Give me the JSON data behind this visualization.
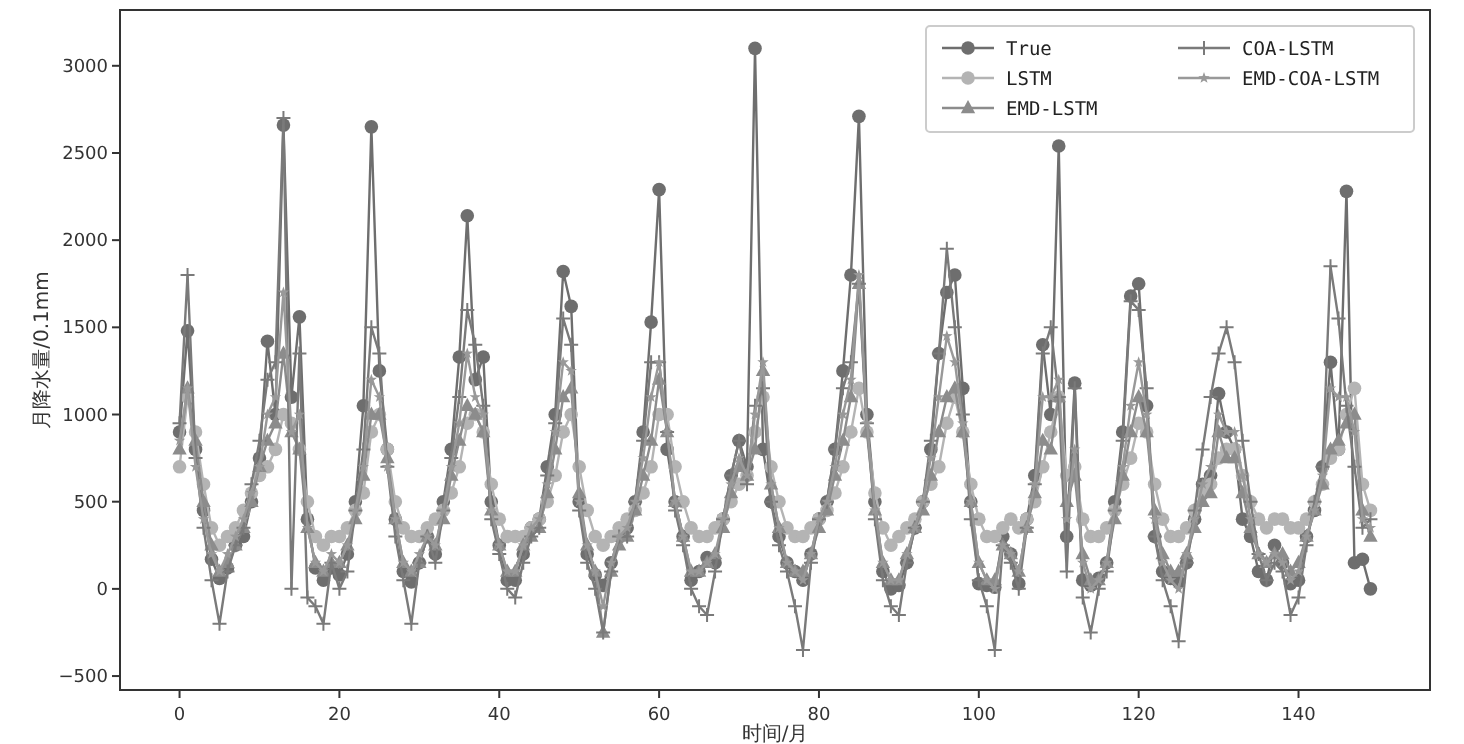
{
  "chart_data": {
    "type": "line",
    "xlabel": "时间/月",
    "ylabel": "月降水量/0.1mm",
    "x": [
      0,
      1,
      2,
      3,
      4,
      5,
      6,
      7,
      8,
      9,
      10,
      11,
      12,
      13,
      14,
      15,
      16,
      17,
      18,
      19,
      20,
      21,
      22,
      23,
      24,
      25,
      26,
      27,
      28,
      29,
      30,
      31,
      32,
      33,
      34,
      35,
      36,
      37,
      38,
      39,
      40,
      41,
      42,
      43,
      44,
      45,
      46,
      47,
      48,
      49,
      50,
      51,
      52,
      53,
      54,
      55,
      56,
      57,
      58,
      59,
      60,
      61,
      62,
      63,
      64,
      65,
      66,
      67,
      68,
      69,
      70,
      71,
      72,
      73,
      74,
      75,
      76,
      77,
      78,
      79,
      80,
      81,
      82,
      83,
      84,
      85,
      86,
      87,
      88,
      89,
      90,
      91,
      92,
      93,
      94,
      95,
      96,
      97,
      98,
      99,
      100,
      101,
      102,
      103,
      104,
      105,
      106,
      107,
      108,
      109,
      110,
      111,
      112,
      113,
      114,
      115,
      116,
      117,
      118,
      119,
      120,
      121,
      122,
      123,
      124,
      125,
      126,
      127,
      128,
      129,
      130,
      131,
      132,
      133,
      134,
      135,
      136,
      137,
      138,
      139,
      140,
      141,
      142,
      143,
      144,
      145,
      146,
      147,
      148,
      149
    ],
    "xlim": [
      -7.45,
      156.45
    ],
    "xticks": [
      0,
      20,
      40,
      60,
      80,
      100,
      120,
      140
    ],
    "ylim": [
      -580,
      3320
    ],
    "yticks": [
      -500,
      0,
      500,
      1000,
      1500,
      2000,
      2500,
      3000
    ],
    "grid": false,
    "legend": "top right",
    "series": [
      {
        "name": "True",
        "color": "#6e6e6e",
        "marker": "circle",
        "values": [
          900,
          1480,
          800,
          450,
          170,
          60,
          120,
          250,
          300,
          500,
          750,
          1420,
          1000,
          2660,
          1100,
          1560,
          400,
          120,
          50,
          120,
          80,
          200,
          500,
          1050,
          2650,
          1250,
          800,
          400,
          100,
          40,
          150,
          300,
          200,
          500,
          800,
          1330,
          2140,
          1200,
          1330,
          500,
          250,
          50,
          50,
          200,
          350,
          400,
          700,
          1000,
          1820,
          1620,
          500,
          200,
          80,
          20,
          150,
          300,
          350,
          500,
          900,
          1530,
          2290,
          800,
          500,
          300,
          50,
          100,
          180,
          150,
          400,
          650,
          850,
          700,
          3100,
          800,
          500,
          300,
          150,
          100,
          50,
          200,
          400,
          500,
          800,
          1250,
          1800,
          2710,
          1000,
          500,
          100,
          0,
          20,
          150,
          350,
          500,
          800,
          1350,
          1700,
          1800,
          1150,
          500,
          30,
          20,
          10,
          300,
          200,
          30,
          400,
          650,
          1400,
          1000,
          2540,
          300,
          1180,
          50,
          20,
          60,
          150,
          500,
          900,
          1680,
          1750,
          1050,
          300,
          100,
          60,
          40,
          150,
          400,
          600,
          650,
          1120,
          900,
          800,
          400,
          300,
          100,
          50,
          250,
          150,
          30,
          50,
          300,
          450,
          700,
          1300,
          800,
          2280,
          150,
          170,
          0
        ]
      },
      {
        "name": "LSTM",
        "color": "#b4b4b4",
        "marker": "circle",
        "values": [
          700,
          1100,
          900,
          600,
          350,
          250,
          300,
          350,
          450,
          550,
          650,
          700,
          800,
          1000,
          950,
          800,
          500,
          300,
          250,
          300,
          300,
          350,
          450,
          550,
          900,
          1000,
          800,
          500,
          350,
          300,
          300,
          350,
          400,
          450,
          550,
          700,
          950,
          1000,
          900,
          600,
          400,
          300,
          300,
          300,
          350,
          400,
          500,
          650,
          900,
          1000,
          700,
          450,
          300,
          250,
          300,
          350,
          400,
          450,
          550,
          700,
          1000,
          1000,
          700,
          500,
          350,
          300,
          300,
          350,
          400,
          500,
          600,
          650,
          900,
          1100,
          700,
          500,
          350,
          300,
          300,
          350,
          400,
          450,
          550,
          700,
          900,
          1150,
          900,
          550,
          350,
          250,
          300,
          350,
          400,
          500,
          600,
          700,
          950,
          1100,
          900,
          600,
          400,
          300,
          300,
          350,
          400,
          350,
          400,
          500,
          700,
          900,
          1100,
          650,
          700,
          400,
          300,
          300,
          350,
          450,
          600,
          750,
          950,
          900,
          600,
          400,
          300,
          300,
          350,
          450,
          550,
          600,
          750,
          800,
          800,
          650,
          500,
          400,
          350,
          400,
          400,
          350,
          350,
          400,
          500,
          600,
          750,
          800,
          1000,
          1150,
          600,
          450
        ]
      },
      {
        "name": "EMD-LSTM",
        "color": "#8c8c8c",
        "marker": "triangle",
        "values": [
          800,
          1150,
          850,
          500,
          250,
          100,
          150,
          250,
          350,
          500,
          700,
          850,
          950,
          1350,
          900,
          800,
          350,
          150,
          100,
          150,
          150,
          250,
          400,
          650,
          1000,
          1000,
          750,
          400,
          150,
          100,
          150,
          300,
          250,
          400,
          650,
          850,
          1050,
          1000,
          900,
          450,
          250,
          100,
          100,
          250,
          300,
          350,
          550,
          800,
          1100,
          1150,
          550,
          250,
          100,
          -250,
          100,
          250,
          300,
          450,
          650,
          850,
          1200,
          900,
          500,
          300,
          100,
          100,
          150,
          200,
          350,
          550,
          700,
          650,
          800,
          1250,
          600,
          350,
          150,
          100,
          100,
          200,
          350,
          450,
          650,
          850,
          1100,
          1750,
          900,
          450,
          150,
          50,
          50,
          200,
          350,
          450,
          650,
          900,
          1100,
          1150,
          900,
          500,
          150,
          50,
          50,
          250,
          200,
          100,
          350,
          550,
          850,
          800,
          1100,
          500,
          650,
          200,
          50,
          50,
          150,
          400,
          650,
          900,
          1100,
          900,
          450,
          200,
          100,
          100,
          200,
          350,
          500,
          550,
          900,
          750,
          750,
          550,
          350,
          200,
          150,
          200,
          200,
          100,
          150,
          300,
          450,
          600,
          800,
          850,
          950,
          1000,
          450,
          300
        ]
      },
      {
        "name": "COA-LSTM",
        "color": "#7a7a7a",
        "marker": "cross",
        "values": [
          950,
          1800,
          750,
          350,
          50,
          -200,
          100,
          250,
          350,
          600,
          850,
          1200,
          1300,
          2700,
          0,
          1350,
          -50,
          -100,
          -200,
          150,
          0,
          100,
          450,
          800,
          1500,
          1350,
          700,
          300,
          50,
          -200,
          150,
          300,
          150,
          450,
          750,
          1100,
          1600,
          1400,
          1050,
          400,
          200,
          0,
          -50,
          150,
          300,
          350,
          650,
          950,
          1550,
          1400,
          450,
          150,
          0,
          -250,
          100,
          300,
          300,
          500,
          850,
          1300,
          1300,
          900,
          450,
          250,
          0,
          -100,
          -150,
          100,
          400,
          650,
          850,
          600,
          1050,
          1150,
          500,
          250,
          100,
          -100,
          -350,
          150,
          400,
          500,
          800,
          1150,
          1300,
          1750,
          950,
          400,
          50,
          -100,
          -150,
          150,
          350,
          500,
          850,
          1350,
          1950,
          1500,
          1000,
          400,
          50,
          -100,
          -350,
          250,
          150,
          0,
          350,
          600,
          1350,
          1500,
          1100,
          100,
          1150,
          -50,
          -250,
          0,
          100,
          450,
          850,
          1650,
          1600,
          1150,
          300,
          50,
          -100,
          -300,
          150,
          450,
          800,
          1100,
          1350,
          1500,
          1300,
          850,
          500,
          200,
          50,
          150,
          100,
          -150,
          -50,
          250,
          500,
          700,
          1850,
          1550,
          1050,
          700,
          350,
          400
        ]
      },
      {
        "name": "EMD-COA-LSTM",
        "color": "#999999",
        "marker": "star",
        "values": [
          850,
          1150,
          700,
          400,
          200,
          100,
          200,
          300,
          400,
          550,
          700,
          1000,
          1100,
          1700,
          900,
          1000,
          350,
          150,
          100,
          200,
          150,
          250,
          450,
          700,
          1200,
          1100,
          700,
          400,
          150,
          100,
          200,
          300,
          250,
          450,
          700,
          950,
          1350,
          1100,
          1000,
          450,
          250,
          100,
          100,
          250,
          350,
          400,
          600,
          900,
          1300,
          1250,
          500,
          250,
          100,
          -100,
          150,
          300,
          350,
          500,
          750,
          1100,
          1300,
          900,
          500,
          300,
          100,
          100,
          150,
          200,
          400,
          600,
          750,
          650,
          1000,
          1300,
          600,
          350,
          150,
          100,
          50,
          200,
          400,
          500,
          700,
          1000,
          1200,
          1800,
          950,
          450,
          150,
          50,
          50,
          200,
          350,
          500,
          750,
          1100,
          1450,
          1300,
          950,
          500,
          150,
          50,
          0,
          250,
          200,
          100,
          350,
          600,
          1100,
          1100,
          1200,
          400,
          800,
          150,
          0,
          50,
          150,
          450,
          700,
          1050,
          1300,
          1000,
          400,
          150,
          50,
          0,
          200,
          400,
          600,
          700,
          1000,
          900,
          900,
          650,
          400,
          200,
          150,
          200,
          150,
          50,
          100,
          300,
          450,
          650,
          1150,
          1100,
          1100,
          900,
          400,
          350
        ]
      }
    ]
  }
}
